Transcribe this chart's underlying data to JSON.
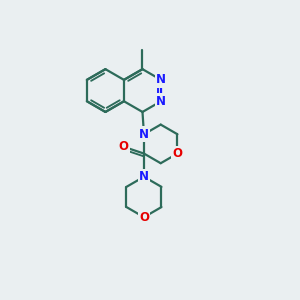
{
  "bg_color": "#eaeff1",
  "bond_color": "#2d6b5a",
  "bond_width": 1.6,
  "atom_colors": {
    "N": "#1a1aff",
    "O": "#e60000",
    "C": "#2d6b5a"
  },
  "font_size_atom": 8.5,
  "figsize": [
    3.0,
    3.0
  ],
  "dpi": 100
}
